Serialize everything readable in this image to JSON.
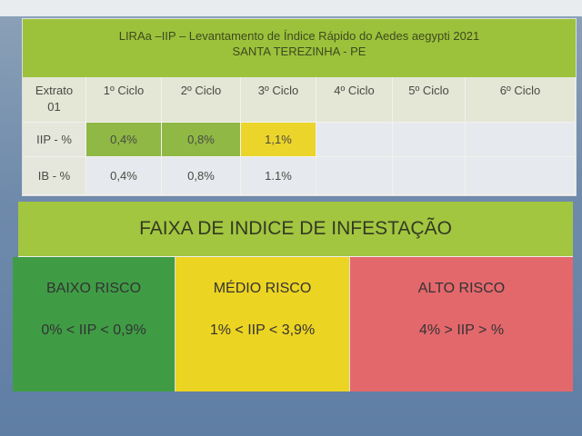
{
  "table": {
    "title_line1": "LIRAa –IIP – Levantamento de Índice Rápido do Aedes aegypti 2021",
    "title_line2": "SANTA TEREZINHA - PE",
    "corner": "Extrato 01",
    "columns": [
      "1º Ciclo",
      "2º Ciclo",
      "3º Ciclo",
      "4º Ciclo",
      "5º Ciclo",
      "6º Ciclo"
    ],
    "rows": [
      {
        "label": "IIP - %",
        "values": [
          "0,4%",
          "0,8%",
          "1,1%",
          "",
          "",
          ""
        ],
        "cell_colors": [
          "#8fb845",
          "#8fb845",
          "#ecd52a",
          "",
          "",
          ""
        ]
      },
      {
        "label": "IB - %",
        "values": [
          "0,4%",
          "0,8%",
          "1.1%",
          "",
          "",
          ""
        ]
      }
    ]
  },
  "legend": {
    "title": "FAIXA DE INDICE DE INFESTAÇÃO",
    "levels": [
      {
        "name": "BAIXO RISCO",
        "range": "0% < IIP < 0,9%",
        "color": "#3f9c45"
      },
      {
        "name": "MÉDIO RISCO",
        "range": "1% < IIP < 3,9%",
        "color": "#ecd422"
      },
      {
        "name": "ALTO RISCO",
        "range": "4% > IIP > %",
        "color": "#e3686c"
      }
    ]
  }
}
